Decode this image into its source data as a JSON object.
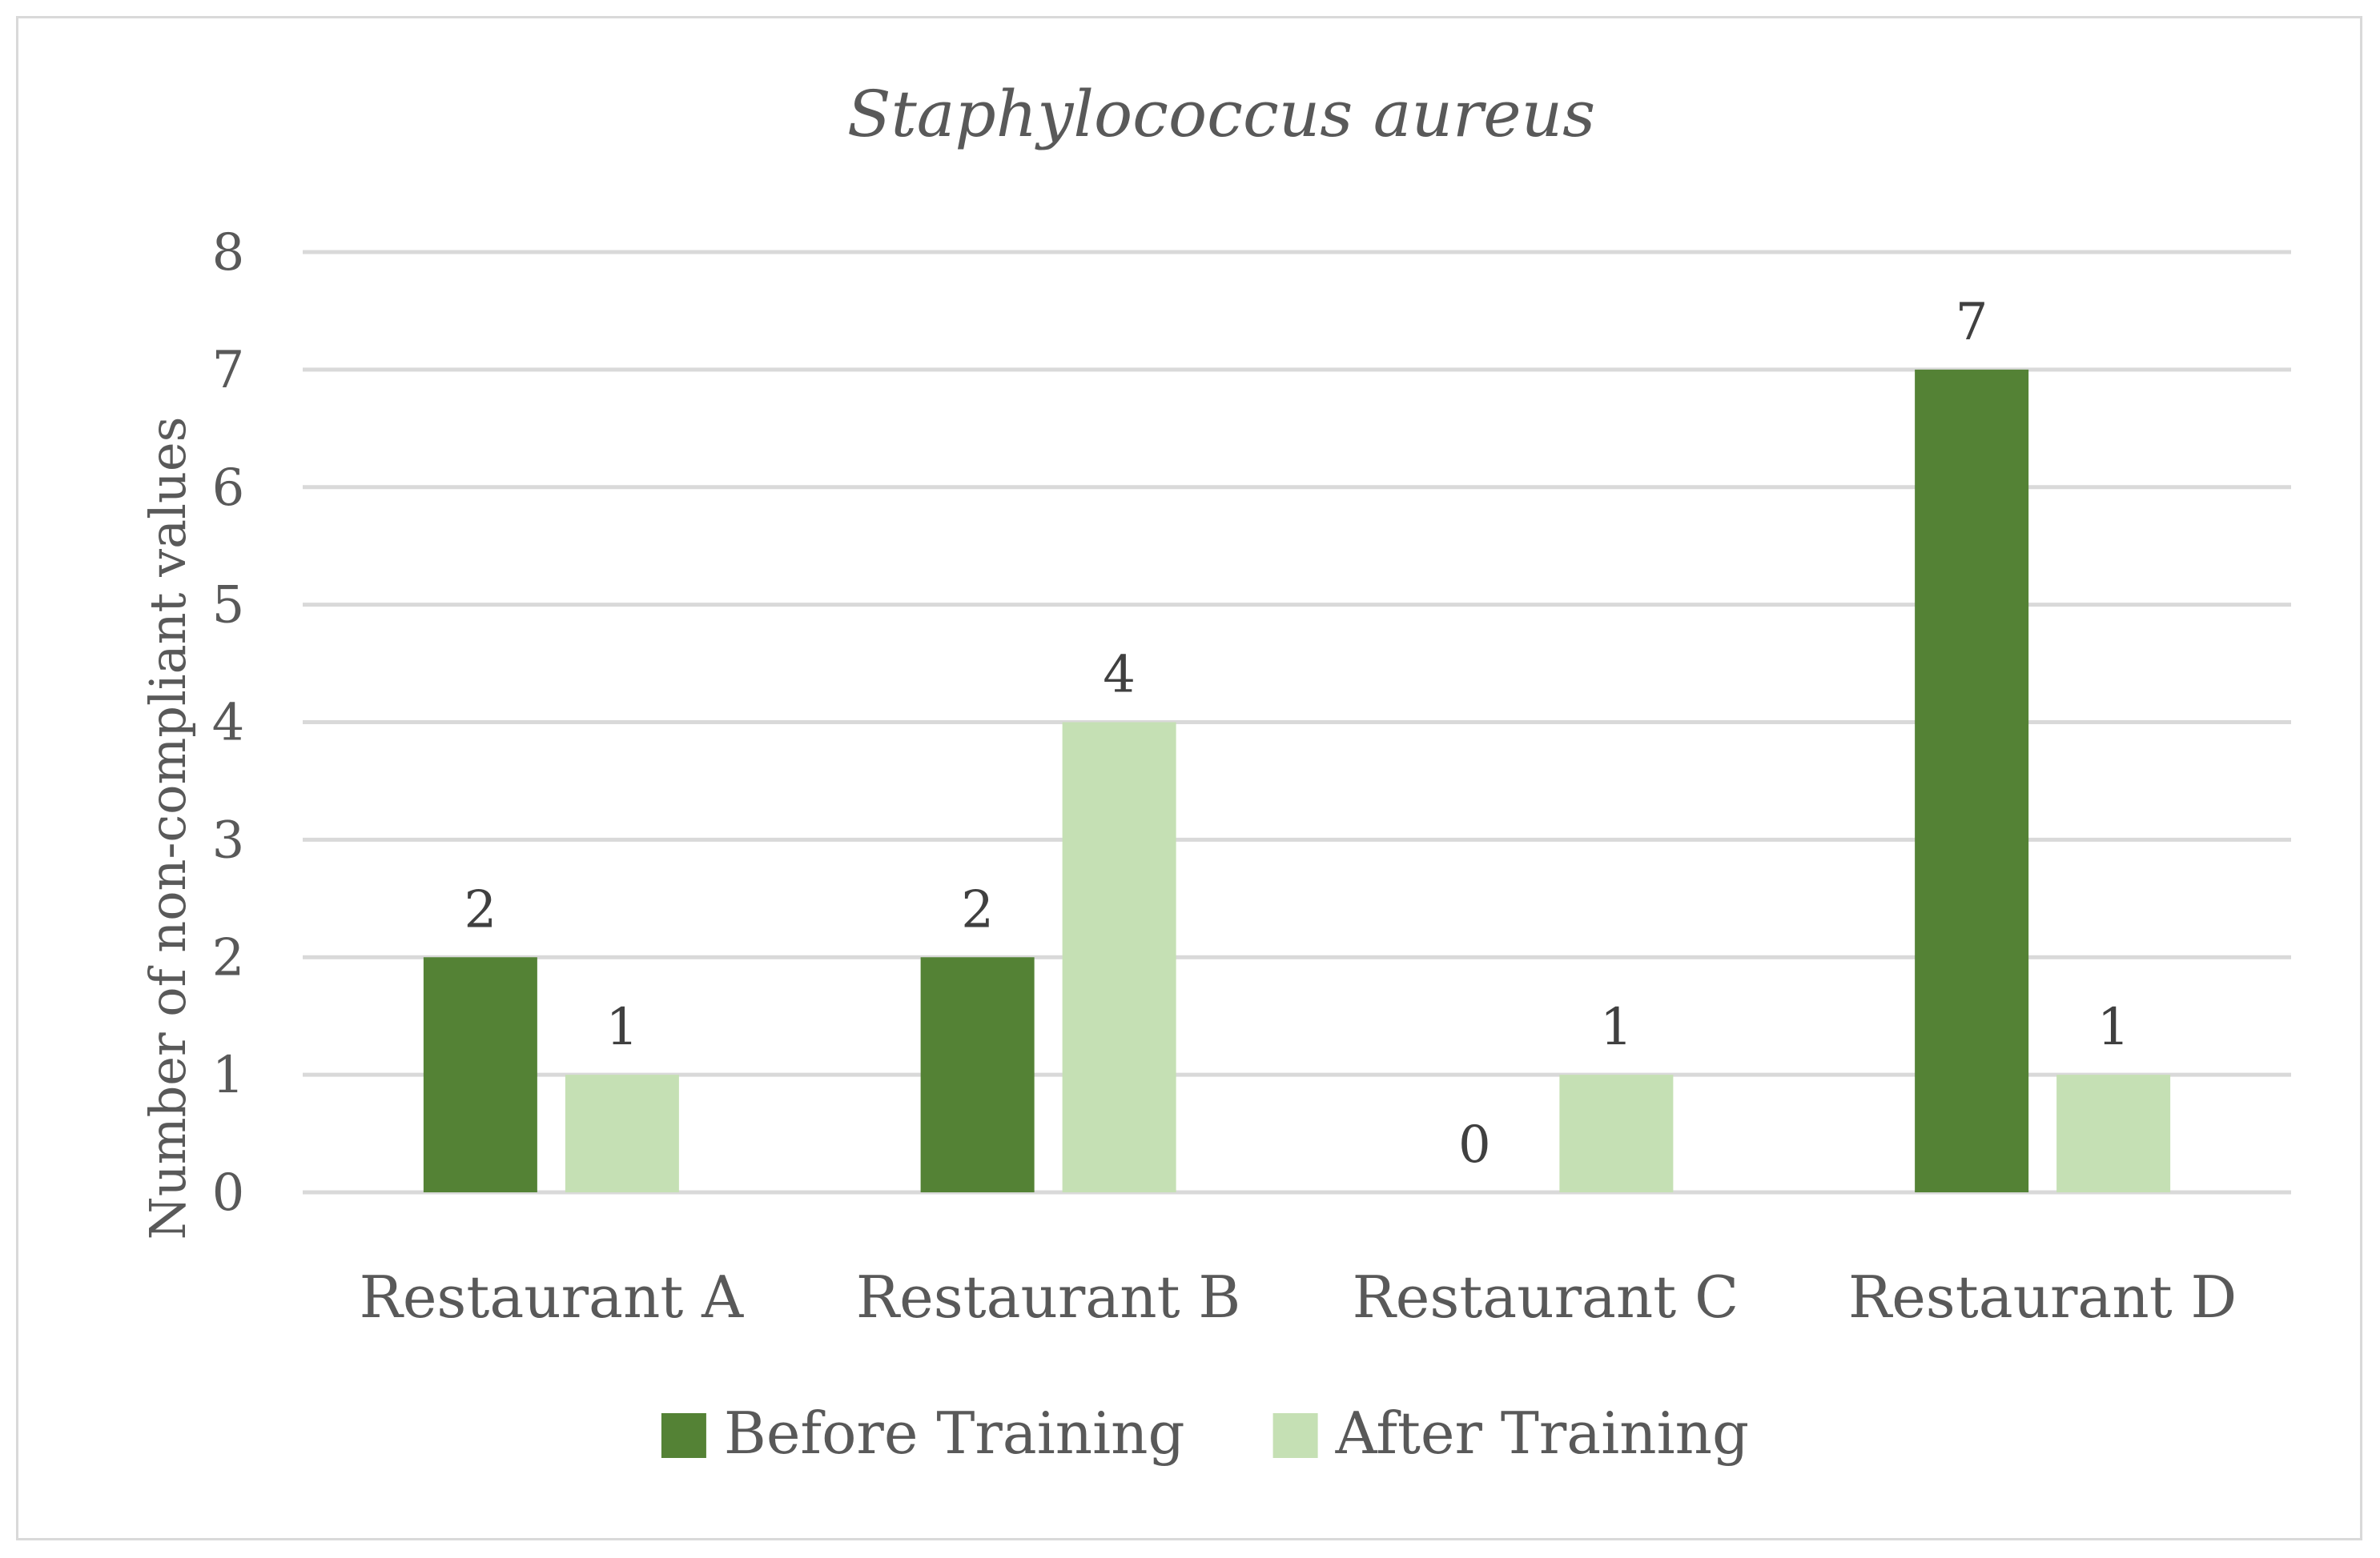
{
  "chart_data": {
    "type": "bar",
    "title": "Staphylococcus aureus",
    "ylabel": "Number of non-compliant values",
    "xlabel": "",
    "categories": [
      "Restaurant A",
      "Restaurant B",
      "Restaurant C",
      "Restaurant D"
    ],
    "series": [
      {
        "name": "Before Training",
        "values": [
          2,
          2,
          0,
          7
        ],
        "color": "#548235"
      },
      {
        "name": "After Training",
        "values": [
          1,
          4,
          1,
          1
        ],
        "color": "#c5e0b4"
      }
    ],
    "ylim": [
      0,
      8
    ],
    "yticks": [
      0,
      1,
      2,
      3,
      4,
      5,
      6,
      7,
      8
    ],
    "grid": true,
    "legend": "bottom",
    "data_labels": true
  }
}
